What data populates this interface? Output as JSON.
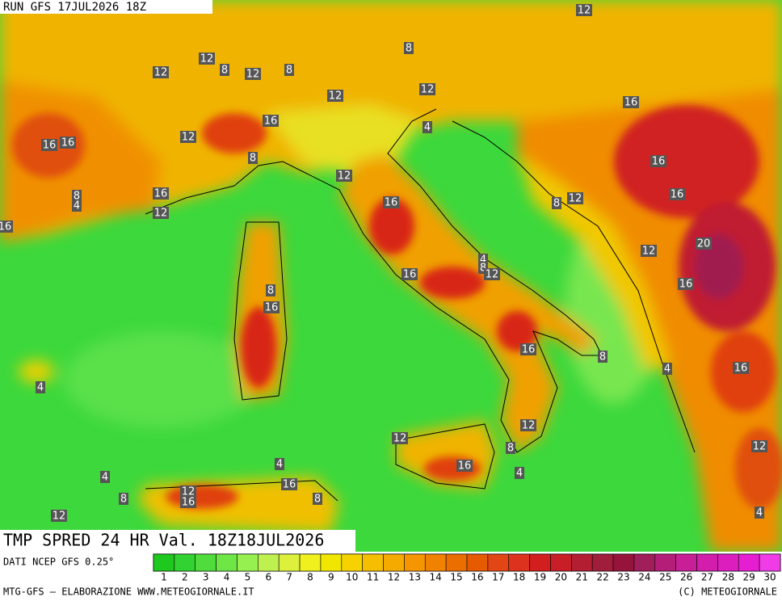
{
  "header": {
    "run": "RUN GFS 17JUL2026 18Z"
  },
  "map": {
    "title": "TMP SPRED 24 HR Val. 18Z18JUL2026",
    "source": "DATI NCEP GFS 0.25°",
    "contour_labels": [
      12,
      8,
      12,
      8,
      12,
      12,
      8,
      12,
      12,
      16,
      16,
      12,
      4,
      16,
      16,
      8,
      16,
      12,
      8,
      16,
      16,
      16,
      8,
      12,
      4,
      12,
      16,
      20,
      12,
      4,
      8,
      12,
      16,
      8,
      16,
      16,
      16,
      8,
      16,
      4,
      4,
      12,
      12,
      8,
      12,
      16,
      4,
      4,
      4,
      16,
      12,
      16,
      8,
      8,
      12,
      4
    ]
  },
  "legend": {
    "items": [
      {
        "value": 1,
        "color": "#1ec81e"
      },
      {
        "value": 2,
        "color": "#32d232"
      },
      {
        "value": 3,
        "color": "#50dc3c"
      },
      {
        "value": 4,
        "color": "#6ee646"
      },
      {
        "value": 5,
        "color": "#96f050"
      },
      {
        "value": 6,
        "color": "#bef050"
      },
      {
        "value": 7,
        "color": "#dcf03c"
      },
      {
        "value": 8,
        "color": "#f0f01e"
      },
      {
        "value": 9,
        "color": "#f0e600"
      },
      {
        "value": 10,
        "color": "#f5d200"
      },
      {
        "value": 11,
        "color": "#f5be00"
      },
      {
        "value": 12,
        "color": "#f5aa00"
      },
      {
        "value": 13,
        "color": "#f59600"
      },
      {
        "value": 14,
        "color": "#f08200"
      },
      {
        "value": 15,
        "color": "#eb6e00"
      },
      {
        "value": 16,
        "color": "#e65a00"
      },
      {
        "value": 17,
        "color": "#e14614"
      },
      {
        "value": 18,
        "color": "#dc321e"
      },
      {
        "value": 19,
        "color": "#d21e1e"
      },
      {
        "value": 20,
        "color": "#c81e28"
      },
      {
        "value": 21,
        "color": "#b41e32"
      },
      {
        "value": 22,
        "color": "#a01e3c"
      },
      {
        "value": 23,
        "color": "#96143c"
      },
      {
        "value": 24,
        "color": "#a01e5a"
      },
      {
        "value": 25,
        "color": "#b41e78"
      },
      {
        "value": 26,
        "color": "#c81e96"
      },
      {
        "value": 27,
        "color": "#d21eaa"
      },
      {
        "value": 28,
        "color": "#dc1ebe"
      },
      {
        "value": 29,
        "color": "#e61ed2"
      },
      {
        "value": 30,
        "color": "#f03ce6"
      }
    ]
  },
  "footer": {
    "left": "MTG-GFS — ELABORAZIONE WWW.METEOGIORNALE.IT",
    "right": "(C) METEOGIORNALE"
  }
}
